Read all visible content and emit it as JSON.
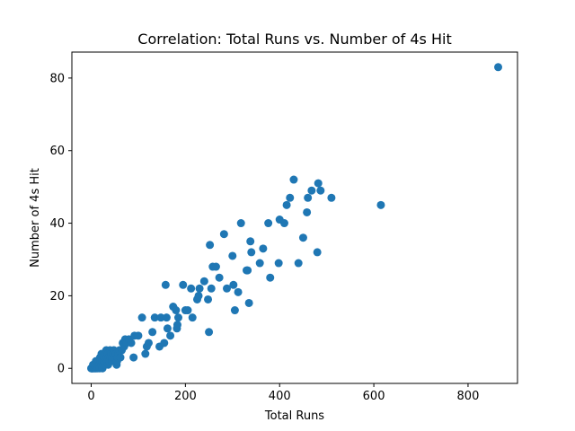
{
  "chart_data": {
    "type": "scatter",
    "title": "Correlation: Total Runs vs. Number of 4s Hit",
    "xlabel": "Total Runs",
    "ylabel": "Number of 4s Hit",
    "xlim": [
      -41,
      905
    ],
    "ylim": [
      -4.15,
      87.15
    ],
    "xticks": [
      0,
      200,
      400,
      600,
      800
    ],
    "yticks": [
      0,
      20,
      40,
      60,
      80
    ],
    "grid": false,
    "legend": "none",
    "marker_color": "#1f77b4",
    "points": [
      [
        0,
        0
      ],
      [
        1,
        0
      ],
      [
        2,
        0
      ],
      [
        3,
        0
      ],
      [
        4,
        1
      ],
      [
        5,
        0
      ],
      [
        6,
        1
      ],
      [
        7,
        0
      ],
      [
        8,
        1
      ],
      [
        9,
        0
      ],
      [
        10,
        2
      ],
      [
        11,
        0
      ],
      [
        12,
        1
      ],
      [
        13,
        2
      ],
      [
        14,
        0
      ],
      [
        15,
        1
      ],
      [
        16,
        2
      ],
      [
        17,
        1
      ],
      [
        18,
        0
      ],
      [
        19,
        3
      ],
      [
        20,
        2
      ],
      [
        21,
        1
      ],
      [
        22,
        4
      ],
      [
        23,
        2
      ],
      [
        24,
        0
      ],
      [
        25,
        3
      ],
      [
        26,
        1
      ],
      [
        27,
        2
      ],
      [
        28,
        3
      ],
      [
        29,
        4
      ],
      [
        30,
        1
      ],
      [
        31,
        2
      ],
      [
        32,
        5
      ],
      [
        33,
        3
      ],
      [
        34,
        2
      ],
      [
        35,
        4
      ],
      [
        36,
        1
      ],
      [
        37,
        3
      ],
      [
        38,
        2
      ],
      [
        40,
        5
      ],
      [
        41,
        3
      ],
      [
        42,
        4
      ],
      [
        44,
        2
      ],
      [
        45,
        3
      ],
      [
        46,
        4
      ],
      [
        48,
        5
      ],
      [
        50,
        3
      ],
      [
        52,
        4
      ],
      [
        54,
        1
      ],
      [
        55,
        2
      ],
      [
        56,
        3
      ],
      [
        58,
        4
      ],
      [
        60,
        5
      ],
      [
        62,
        3
      ],
      [
        65,
        5
      ],
      [
        67,
        7
      ],
      [
        70,
        6
      ],
      [
        72,
        8
      ],
      [
        75,
        7
      ],
      [
        80,
        8
      ],
      [
        85,
        7
      ],
      [
        90,
        3
      ],
      [
        92,
        9
      ],
      [
        100,
        9
      ],
      [
        108,
        14
      ],
      [
        115,
        4
      ],
      [
        118,
        6
      ],
      [
        122,
        7
      ],
      [
        130,
        10
      ],
      [
        135,
        14
      ],
      [
        145,
        6
      ],
      [
        148,
        14
      ],
      [
        155,
        7
      ],
      [
        158,
        23
      ],
      [
        160,
        14
      ],
      [
        162,
        11
      ],
      [
        168,
        9
      ],
      [
        174,
        17
      ],
      [
        180,
        16
      ],
      [
        182,
        11
      ],
      [
        183,
        12
      ],
      [
        185,
        14
      ],
      [
        195,
        23
      ],
      [
        200,
        16
      ],
      [
        205,
        16
      ],
      [
        212,
        22
      ],
      [
        215,
        14
      ],
      [
        225,
        19
      ],
      [
        228,
        20
      ],
      [
        230,
        22
      ],
      [
        240,
        24
      ],
      [
        248,
        19
      ],
      [
        250,
        10
      ],
      [
        252,
        34
      ],
      [
        255,
        22
      ],
      [
        258,
        28
      ],
      [
        265,
        28
      ],
      [
        272,
        25
      ],
      [
        282,
        37
      ],
      [
        288,
        22
      ],
      [
        300,
        31
      ],
      [
        302,
        23
      ],
      [
        305,
        16
      ],
      [
        312,
        21
      ],
      [
        318,
        40
      ],
      [
        330,
        27
      ],
      [
        332,
        27
      ],
      [
        335,
        18
      ],
      [
        338,
        35
      ],
      [
        340,
        32
      ],
      [
        358,
        29
      ],
      [
        365,
        33
      ],
      [
        376,
        40
      ],
      [
        380,
        25
      ],
      [
        398,
        29
      ],
      [
        400,
        41
      ],
      [
        410,
        40
      ],
      [
        415,
        45
      ],
      [
        422,
        47
      ],
      [
        430,
        52
      ],
      [
        440,
        29
      ],
      [
        450,
        36
      ],
      [
        458,
        43
      ],
      [
        460,
        47
      ],
      [
        468,
        49
      ],
      [
        480,
        32
      ],
      [
        482,
        51
      ],
      [
        487,
        49
      ],
      [
        510,
        47
      ],
      [
        615,
        45
      ],
      [
        864,
        83
      ]
    ]
  }
}
